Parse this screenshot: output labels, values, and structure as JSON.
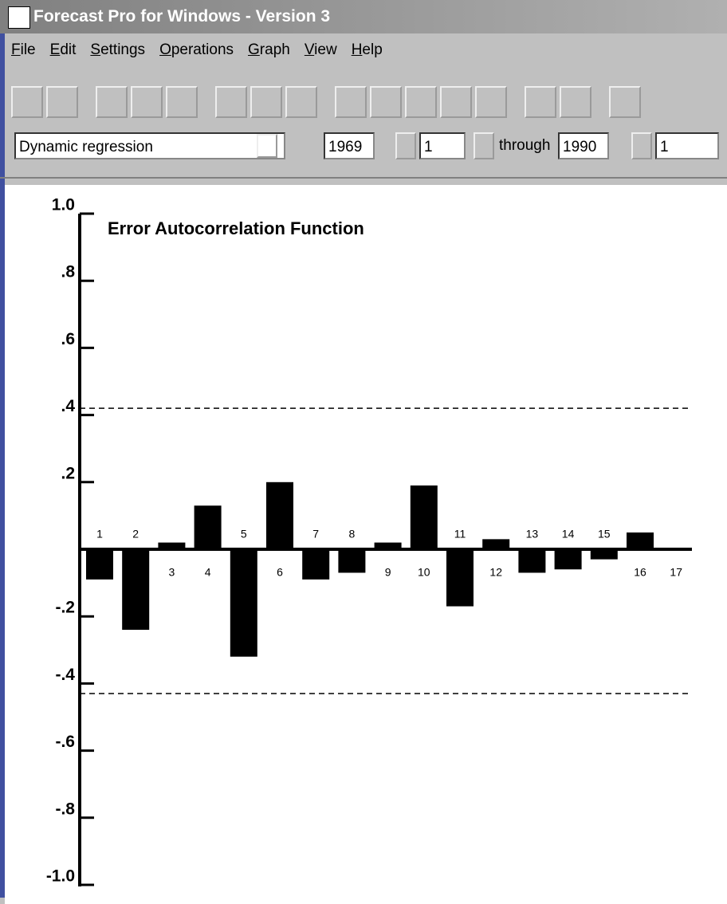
{
  "window": {
    "title": "Forecast Pro for Windows - Version 3",
    "menu": [
      "File",
      "Edit",
      "Settings",
      "Operations",
      "Graph",
      "View",
      "Help"
    ],
    "model": "Dynamic regression",
    "start_year": "1969",
    "start_period": "1",
    "through": "through",
    "end_year": "1990",
    "end_period": "1"
  },
  "chart_data": {
    "type": "bar",
    "title": "Error Autocorrelation Function",
    "categories": [
      "1",
      "2",
      "3",
      "4",
      "5",
      "6",
      "7",
      "8",
      "9",
      "10",
      "11",
      "12",
      "13",
      "14",
      "15",
      "16",
      "17"
    ],
    "values": [
      -0.09,
      -0.24,
      0.02,
      0.13,
      -0.32,
      0.2,
      -0.09,
      -0.07,
      0.02,
      0.19,
      -0.17,
      0.03,
      -0.07,
      -0.06,
      -0.03,
      0.05,
      0
    ],
    "color": "#000000",
    "ylim": [
      -1,
      1
    ],
    "yticks": [
      {
        "value": 1,
        "label": "1.0"
      },
      {
        "value": 0.8,
        "label": ".8"
      },
      {
        "value": 0.6,
        "label": ".6"
      },
      {
        "value": 0.4,
        "label": ".4"
      },
      {
        "value": 0.2,
        "label": ".2"
      },
      {
        "value": -0.2,
        "label": "-.2"
      },
      {
        "value": -0.4,
        "label": "-.4"
      },
      {
        "value": -0.6,
        "label": "-.6"
      },
      {
        "value": -0.8,
        "label": "-.8"
      },
      {
        "value": -1,
        "label": "-1.0"
      }
    ],
    "confidence_limits": [
      0.42,
      -0.43
    ]
  }
}
